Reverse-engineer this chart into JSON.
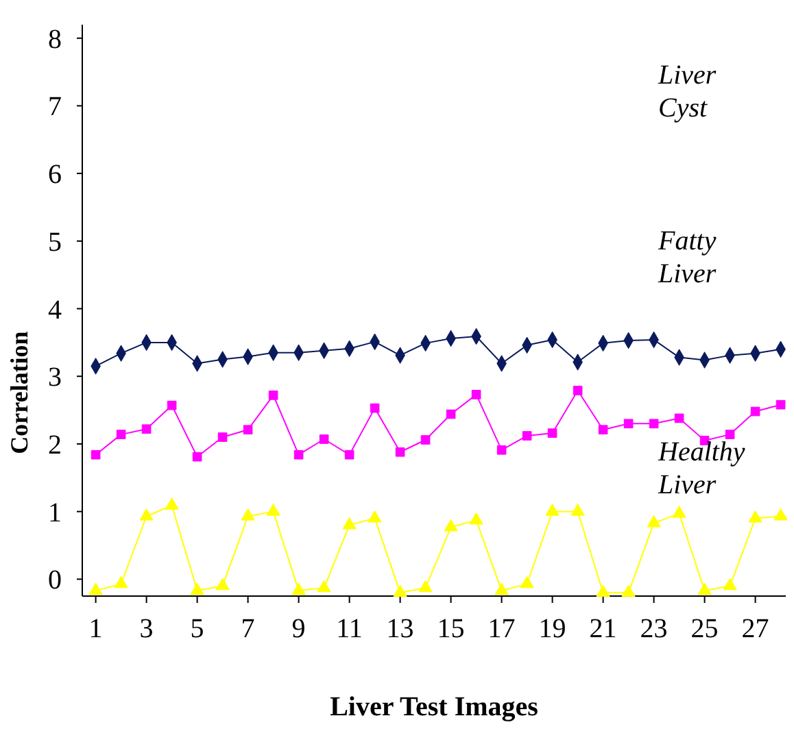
{
  "chart_data": {
    "type": "line",
    "xlabel": "Liver Test Images",
    "ylabel": "Correlation",
    "x": [
      1,
      2,
      3,
      4,
      5,
      6,
      7,
      8,
      9,
      10,
      11,
      12,
      13,
      14,
      15,
      16,
      17,
      18,
      19,
      20,
      21,
      22,
      23,
      24,
      25,
      26,
      27,
      28
    ],
    "xlim": [
      0.47,
      28.2
    ],
    "xticks": [
      1,
      3,
      5,
      7,
      9,
      11,
      13,
      15,
      17,
      19,
      21,
      23,
      25,
      27
    ],
    "ylim": [
      -0.25,
      8.2
    ],
    "yticks": [
      0,
      1,
      2,
      3,
      4,
      5,
      6,
      7,
      8
    ],
    "grid": false,
    "series": [
      {
        "color": "#0a1a5c",
        "marker": "diamond",
        "values": [
          3.15,
          3.34,
          3.5,
          3.5,
          3.19,
          3.25,
          3.29,
          3.35,
          3.35,
          3.38,
          3.41,
          3.51,
          3.31,
          3.49,
          3.56,
          3.59,
          3.19,
          3.46,
          3.54,
          3.21,
          3.49,
          3.53,
          3.54,
          3.28,
          3.24,
          3.31,
          3.34,
          3.4
        ]
      },
      {
        "color": "#ff00ff",
        "marker": "square",
        "values": [
          1.84,
          2.14,
          2.22,
          2.57,
          1.81,
          2.1,
          2.21,
          2.72,
          1.84,
          2.07,
          1.84,
          2.53,
          1.88,
          2.06,
          2.44,
          2.73,
          1.91,
          2.12,
          2.16,
          2.79,
          2.21,
          2.3,
          2.3,
          2.38,
          2.05,
          2.14,
          2.48,
          2.58
        ]
      },
      {
        "color": "#ffff00",
        "marker": "triangle",
        "values": [
          -0.17,
          -0.07,
          0.93,
          1.09,
          -0.17,
          -0.1,
          0.93,
          1.0,
          -0.17,
          -0.13,
          0.8,
          0.9,
          -0.2,
          -0.13,
          0.77,
          0.87,
          -0.17,
          -0.07,
          1.0,
          1.0,
          -0.2,
          -0.2,
          0.83,
          0.97,
          -0.17,
          -0.1,
          0.9,
          0.93
        ]
      }
    ],
    "annotations": [
      "Liver Cyst",
      "Fatty Liver",
      "Healthy Liver"
    ]
  }
}
